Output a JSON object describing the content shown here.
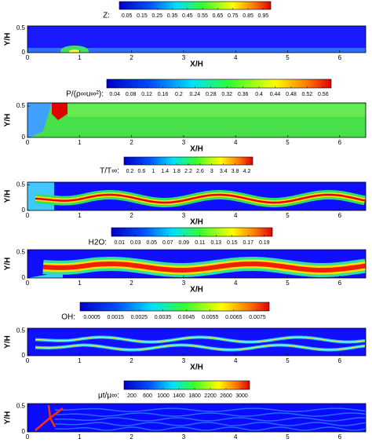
{
  "chart_data": [
    {
      "type": "contour",
      "colorbar_label": "Z:",
      "clim": [
        0,
        1
      ],
      "colorbar_ticks": [
        0.05,
        0.15,
        0.25,
        0.35,
        0.45,
        0.55,
        0.65,
        0.75,
        0.85,
        0.95
      ],
      "xlabel": "X/H",
      "ylabel": "Y/H",
      "xlim": [
        0,
        6.5
      ],
      "xticks": [
        0,
        1,
        2,
        3,
        4,
        5,
        6
      ],
      "ylim": [
        0,
        0.55
      ],
      "yticks": [
        0,
        0.5
      ]
    },
    {
      "type": "contour",
      "colorbar_label": "P/(ρ∞u∞²):",
      "clim": [
        0.02,
        0.58
      ],
      "colorbar_ticks": [
        0.04,
        0.08,
        0.12,
        0.16,
        0.2,
        0.24,
        0.28,
        0.32,
        0.36,
        0.4,
        0.44,
        0.48,
        0.52,
        0.56
      ],
      "xlabel": "X/H",
      "ylabel": "Y/H",
      "xlim": [
        0,
        6.5
      ],
      "xticks": [
        0,
        1,
        2,
        3,
        4,
        5,
        6
      ],
      "ylim": [
        0,
        0.55
      ],
      "yticks": [
        0,
        0.5
      ]
    },
    {
      "type": "contour",
      "colorbar_label": "T/T∞:",
      "clim": [
        0,
        4.4
      ],
      "colorbar_ticks": [
        0.2,
        0.6,
        1,
        1.4,
        1.8,
        2.2,
        2.6,
        3,
        3.4,
        3.8,
        4.2
      ],
      "xlabel": "X/H",
      "ylabel": "Y/H",
      "xlim": [
        0,
        6.5
      ],
      "xticks": [
        0,
        1,
        2,
        3,
        4,
        5,
        6
      ],
      "ylim": [
        0,
        0.55
      ],
      "yticks": [
        0,
        0.5
      ]
    },
    {
      "type": "contour",
      "colorbar_label": "H2O:",
      "clim": [
        0,
        0.2
      ],
      "colorbar_ticks": [
        0.01,
        0.03,
        0.05,
        0.07,
        0.09,
        0.11,
        0.13,
        0.15,
        0.17,
        0.19
      ],
      "xlabel": "X/H",
      "ylabel": "Y/H",
      "xlim": [
        0,
        6.5
      ],
      "xticks": [
        0,
        1,
        2,
        3,
        4,
        5,
        6
      ],
      "ylim": [
        0,
        0.55
      ],
      "yticks": [
        0,
        0.5
      ]
    },
    {
      "type": "contour",
      "colorbar_label": "OH:",
      "clim": [
        0,
        0.008
      ],
      "colorbar_ticks": [
        0.0005,
        0.0015,
        0.0025,
        0.0035,
        0.0045,
        0.0055,
        0.0065,
        0.0075
      ],
      "xlabel": "X/H",
      "ylabel": "Y/H",
      "xlim": [
        0,
        6.5
      ],
      "xticks": [
        0,
        1,
        2,
        3,
        4,
        5,
        6
      ],
      "ylim": [
        0,
        0.55
      ],
      "yticks": [
        0,
        0.5
      ]
    },
    {
      "type": "contour",
      "colorbar_label": "μt/μ∞:",
      "clim": [
        0,
        3200
      ],
      "colorbar_ticks": [
        200,
        600,
        1000,
        1400,
        1800,
        2200,
        2600,
        3000
      ],
      "ylabel": "Y/H",
      "xlim": [
        0,
        6.5
      ],
      "xticks": [
        0,
        1,
        2,
        3,
        4,
        5,
        6
      ],
      "ylim": [
        0,
        0.55
      ],
      "yticks": [
        0,
        0.5
      ]
    }
  ]
}
